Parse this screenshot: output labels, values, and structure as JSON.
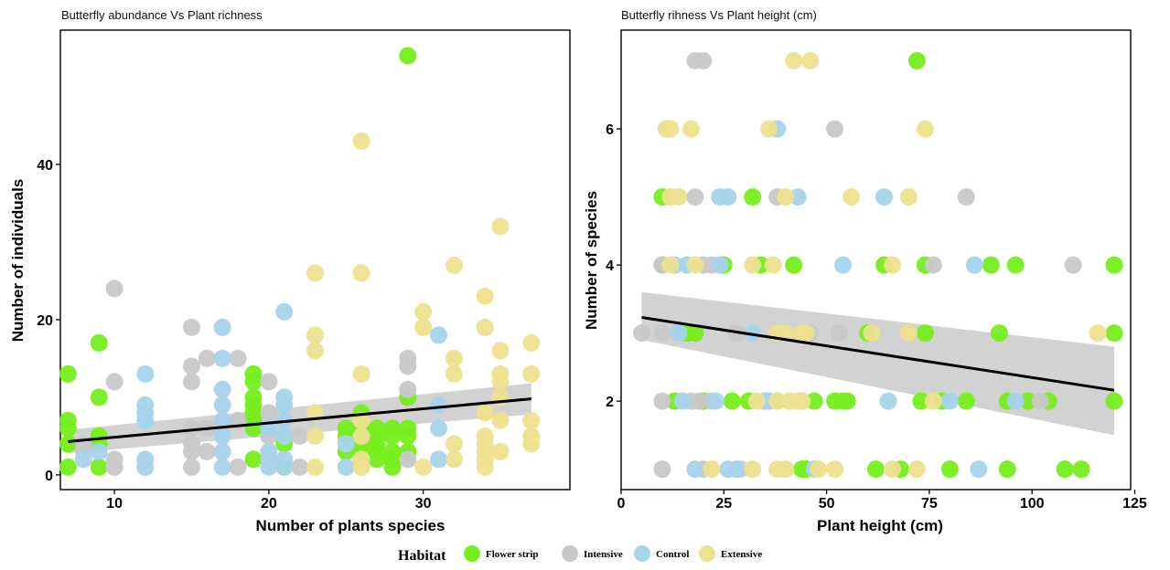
{
  "legend": {
    "title": "Habitat",
    "items": [
      {
        "label": "Flower strip",
        "color": "#76ee1e"
      },
      {
        "label": "Intensive",
        "color": "#c8c8c8"
      },
      {
        "label": "Control",
        "color": "#a7d3ec"
      },
      {
        "label": "Extensive",
        "color": "#ede08f"
      }
    ]
  },
  "chart_data": [
    {
      "type": "scatter",
      "title": "Butterfly abundance Vs Plant richness",
      "xlabel": "Number of plants species",
      "ylabel": "Number of individuals",
      "xlim": [
        6.5,
        39.5
      ],
      "ylim": [
        -1.9,
        57.3
      ],
      "xticks": [
        10,
        20,
        30
      ],
      "yticks": [
        0,
        20,
        40
      ],
      "grid": false,
      "regression": {
        "x": [
          7,
          37
        ],
        "y": [
          4.3,
          9.8
        ],
        "ci_low": [
          2.8,
          7.8
        ],
        "ci_high": [
          5.8,
          11.8
        ]
      },
      "series": [
        {
          "name": "Flower strip",
          "points": [
            [
              7,
              13
            ],
            [
              7,
              7
            ],
            [
              7,
              6
            ],
            [
              7,
              4
            ],
            [
              7,
              1
            ],
            [
              9,
              17
            ],
            [
              9,
              10
            ],
            [
              9,
              5
            ],
            [
              9,
              4
            ],
            [
              9,
              1
            ],
            [
              19,
              13
            ],
            [
              19,
              12
            ],
            [
              19,
              10
            ],
            [
              19,
              9
            ],
            [
              19,
              8
            ],
            [
              19,
              7
            ],
            [
              19,
              6
            ],
            [
              19,
              2
            ],
            [
              21,
              4
            ],
            [
              21,
              1
            ],
            [
              25,
              6
            ],
            [
              25,
              5
            ],
            [
              25,
              3
            ],
            [
              26,
              8
            ],
            [
              26,
              6
            ],
            [
              26,
              4
            ],
            [
              26,
              3
            ],
            [
              26,
              2
            ],
            [
              27,
              6
            ],
            [
              27,
              5
            ],
            [
              27,
              4
            ],
            [
              27,
              3
            ],
            [
              27,
              2
            ],
            [
              28,
              6
            ],
            [
              28,
              5
            ],
            [
              28,
              3
            ],
            [
              28,
              2
            ],
            [
              28,
              1
            ],
            [
              29,
              54
            ],
            [
              29,
              10
            ],
            [
              29,
              6
            ],
            [
              29,
              5
            ],
            [
              29,
              3
            ]
          ]
        },
        {
          "name": "Intensive",
          "points": [
            [
              8,
              3
            ],
            [
              8,
              4
            ],
            [
              10,
              24
            ],
            [
              10,
              12
            ],
            [
              10,
              1
            ],
            [
              10,
              2
            ],
            [
              15,
              19
            ],
            [
              15,
              14
            ],
            [
              15,
              12
            ],
            [
              15,
              6
            ],
            [
              15,
              4
            ],
            [
              15,
              3
            ],
            [
              15,
              1
            ],
            [
              16,
              15
            ],
            [
              16,
              6
            ],
            [
              16,
              3
            ],
            [
              18,
              15
            ],
            [
              18,
              7
            ],
            [
              18,
              1
            ],
            [
              20,
              12
            ],
            [
              20,
              8
            ],
            [
              20,
              5
            ],
            [
              20,
              2
            ],
            [
              22,
              5
            ],
            [
              22,
              1
            ],
            [
              29,
              15
            ],
            [
              29,
              14
            ],
            [
              29,
              11
            ],
            [
              29,
              2
            ]
          ]
        },
        {
          "name": "Control",
          "points": [
            [
              8,
              2
            ],
            [
              9,
              3
            ],
            [
              12,
              13
            ],
            [
              12,
              9
            ],
            [
              12,
              8
            ],
            [
              12,
              7
            ],
            [
              12,
              2
            ],
            [
              12,
              1
            ],
            [
              17,
              19
            ],
            [
              17,
              15
            ],
            [
              17,
              11
            ],
            [
              17,
              9
            ],
            [
              17,
              7
            ],
            [
              17,
              5
            ],
            [
              17,
              3
            ],
            [
              17,
              1
            ],
            [
              20,
              6
            ],
            [
              20,
              3
            ],
            [
              20,
              1
            ],
            [
              21,
              21
            ],
            [
              21,
              10
            ],
            [
              21,
              9
            ],
            [
              21,
              7
            ],
            [
              21,
              5
            ],
            [
              21,
              2
            ],
            [
              21,
              1
            ],
            [
              25,
              4
            ],
            [
              25,
              1
            ],
            [
              31,
              18
            ],
            [
              31,
              9
            ],
            [
              31,
              6
            ],
            [
              31,
              2
            ]
          ]
        },
        {
          "name": "Extensive",
          "points": [
            [
              23,
              26
            ],
            [
              23,
              18
            ],
            [
              23,
              16
            ],
            [
              23,
              8
            ],
            [
              23,
              5
            ],
            [
              23,
              1
            ],
            [
              26,
              43
            ],
            [
              26,
              26
            ],
            [
              26,
              13
            ],
            [
              26,
              7
            ],
            [
              26,
              5
            ],
            [
              26,
              2
            ],
            [
              26,
              1
            ],
            [
              30,
              21
            ],
            [
              30,
              19
            ],
            [
              30,
              1
            ],
            [
              32,
              27
            ],
            [
              32,
              15
            ],
            [
              32,
              13
            ],
            [
              32,
              4
            ],
            [
              32,
              2
            ],
            [
              34,
              23
            ],
            [
              34,
              19
            ],
            [
              34,
              8
            ],
            [
              34,
              5
            ],
            [
              34,
              4
            ],
            [
              34,
              3
            ],
            [
              34,
              2
            ],
            [
              34,
              1
            ],
            [
              35,
              32
            ],
            [
              35,
              16
            ],
            [
              35,
              13
            ],
            [
              35,
              12
            ],
            [
              35,
              10
            ],
            [
              35,
              7
            ],
            [
              35,
              3
            ],
            [
              37,
              17
            ],
            [
              37,
              13
            ],
            [
              37,
              7
            ],
            [
              37,
              5
            ],
            [
              37,
              4
            ]
          ]
        }
      ]
    },
    {
      "type": "scatter",
      "title": "Butterfly rihness Vs Plant height (cm)",
      "xlabel": "Plant height (cm)",
      "ylabel": "Number of species",
      "xlim": [
        0,
        124
      ],
      "ylim": [
        0.7,
        7.45
      ],
      "xticks": [
        0,
        25,
        50,
        75,
        100,
        125
      ],
      "yticks": [
        2,
        4,
        6
      ],
      "grid": false,
      "regression": {
        "x": [
          5,
          120
        ],
        "y": [
          3.23,
          2.16
        ],
        "ci_low": [
          2.9,
          1.5
        ],
        "ci_high": [
          3.6,
          2.8
        ]
      },
      "series": [
        {
          "name": "Flower strip",
          "points": [
            [
              72,
              7
            ],
            [
              10,
              5
            ],
            [
              32,
              5
            ],
            [
              10,
              4
            ],
            [
              25,
              4
            ],
            [
              34,
              4
            ],
            [
              42,
              4
            ],
            [
              64,
              4
            ],
            [
              74,
              4
            ],
            [
              90,
              4
            ],
            [
              96,
              4
            ],
            [
              120,
              4
            ],
            [
              16,
              3
            ],
            [
              18,
              3
            ],
            [
              60,
              3
            ],
            [
              74,
              3
            ],
            [
              92,
              3
            ],
            [
              120,
              3
            ],
            [
              13,
              2
            ],
            [
              20,
              2
            ],
            [
              27,
              2
            ],
            [
              31,
              2
            ],
            [
              38,
              2
            ],
            [
              47,
              2
            ],
            [
              52,
              2
            ],
            [
              54,
              2
            ],
            [
              55,
              2
            ],
            [
              73,
              2
            ],
            [
              78,
              2
            ],
            [
              84,
              2
            ],
            [
              94,
              2
            ],
            [
              99,
              2
            ],
            [
              104,
              2
            ],
            [
              120,
              2
            ],
            [
              44,
              1
            ],
            [
              45,
              1
            ],
            [
              62,
              1
            ],
            [
              68,
              1
            ],
            [
              80,
              1
            ],
            [
              94,
              1
            ],
            [
              108,
              1
            ],
            [
              112,
              1
            ]
          ]
        },
        {
          "name": "Intensive",
          "points": [
            [
              18,
              7
            ],
            [
              20,
              7
            ],
            [
              52,
              6
            ],
            [
              18,
              5
            ],
            [
              38,
              5
            ],
            [
              84,
              5
            ],
            [
              10,
              4
            ],
            [
              20,
              4
            ],
            [
              22,
              4
            ],
            [
              76,
              4
            ],
            [
              110,
              4
            ],
            [
              5,
              3
            ],
            [
              10,
              3
            ],
            [
              28,
              3
            ],
            [
              46,
              3
            ],
            [
              53,
              3
            ],
            [
              10,
              2
            ],
            [
              17,
              2
            ],
            [
              19,
              2
            ],
            [
              22,
              2
            ],
            [
              35,
              2
            ],
            [
              44,
              2
            ],
            [
              102,
              2
            ],
            [
              10,
              1
            ],
            [
              20,
              1
            ],
            [
              29,
              1
            ],
            [
              40,
              1
            ]
          ]
        },
        {
          "name": "Control",
          "points": [
            [
              11,
              6
            ],
            [
              38,
              6
            ],
            [
              24,
              5
            ],
            [
              26,
              5
            ],
            [
              43,
              5
            ],
            [
              64,
              5
            ],
            [
              13,
              4
            ],
            [
              16,
              4
            ],
            [
              24,
              4
            ],
            [
              54,
              4
            ],
            [
              86,
              4
            ],
            [
              14,
              3
            ],
            [
              32,
              3
            ],
            [
              15,
              2
            ],
            [
              23,
              2
            ],
            [
              36,
              2
            ],
            [
              65,
              2
            ],
            [
              80,
              2
            ],
            [
              96,
              2
            ],
            [
              18,
              1
            ],
            [
              26,
              1
            ],
            [
              28,
              1
            ],
            [
              47,
              1
            ],
            [
              87,
              1
            ]
          ]
        },
        {
          "name": "Extensive",
          "points": [
            [
              42,
              7
            ],
            [
              46,
              7
            ],
            [
              11,
              6
            ],
            [
              12,
              6
            ],
            [
              17,
              6
            ],
            [
              36,
              6
            ],
            [
              74,
              6
            ],
            [
              12,
              5
            ],
            [
              14,
              5
            ],
            [
              40,
              5
            ],
            [
              56,
              5
            ],
            [
              70,
              5
            ],
            [
              12,
              4
            ],
            [
              18,
              4
            ],
            [
              32,
              4
            ],
            [
              37,
              4
            ],
            [
              66,
              4
            ],
            [
              38,
              3
            ],
            [
              40,
              3
            ],
            [
              44,
              3
            ],
            [
              45,
              3
            ],
            [
              61,
              3
            ],
            [
              70,
              3
            ],
            [
              116,
              3
            ],
            [
              33,
              2
            ],
            [
              38,
              2
            ],
            [
              41,
              2
            ],
            [
              43,
              2
            ],
            [
              44,
              2
            ],
            [
              76,
              2
            ],
            [
              22,
              1
            ],
            [
              32,
              1
            ],
            [
              38,
              1
            ],
            [
              40,
              1
            ],
            [
              48,
              1
            ],
            [
              52,
              1
            ],
            [
              66,
              1
            ],
            [
              72,
              1
            ]
          ]
        }
      ]
    }
  ]
}
